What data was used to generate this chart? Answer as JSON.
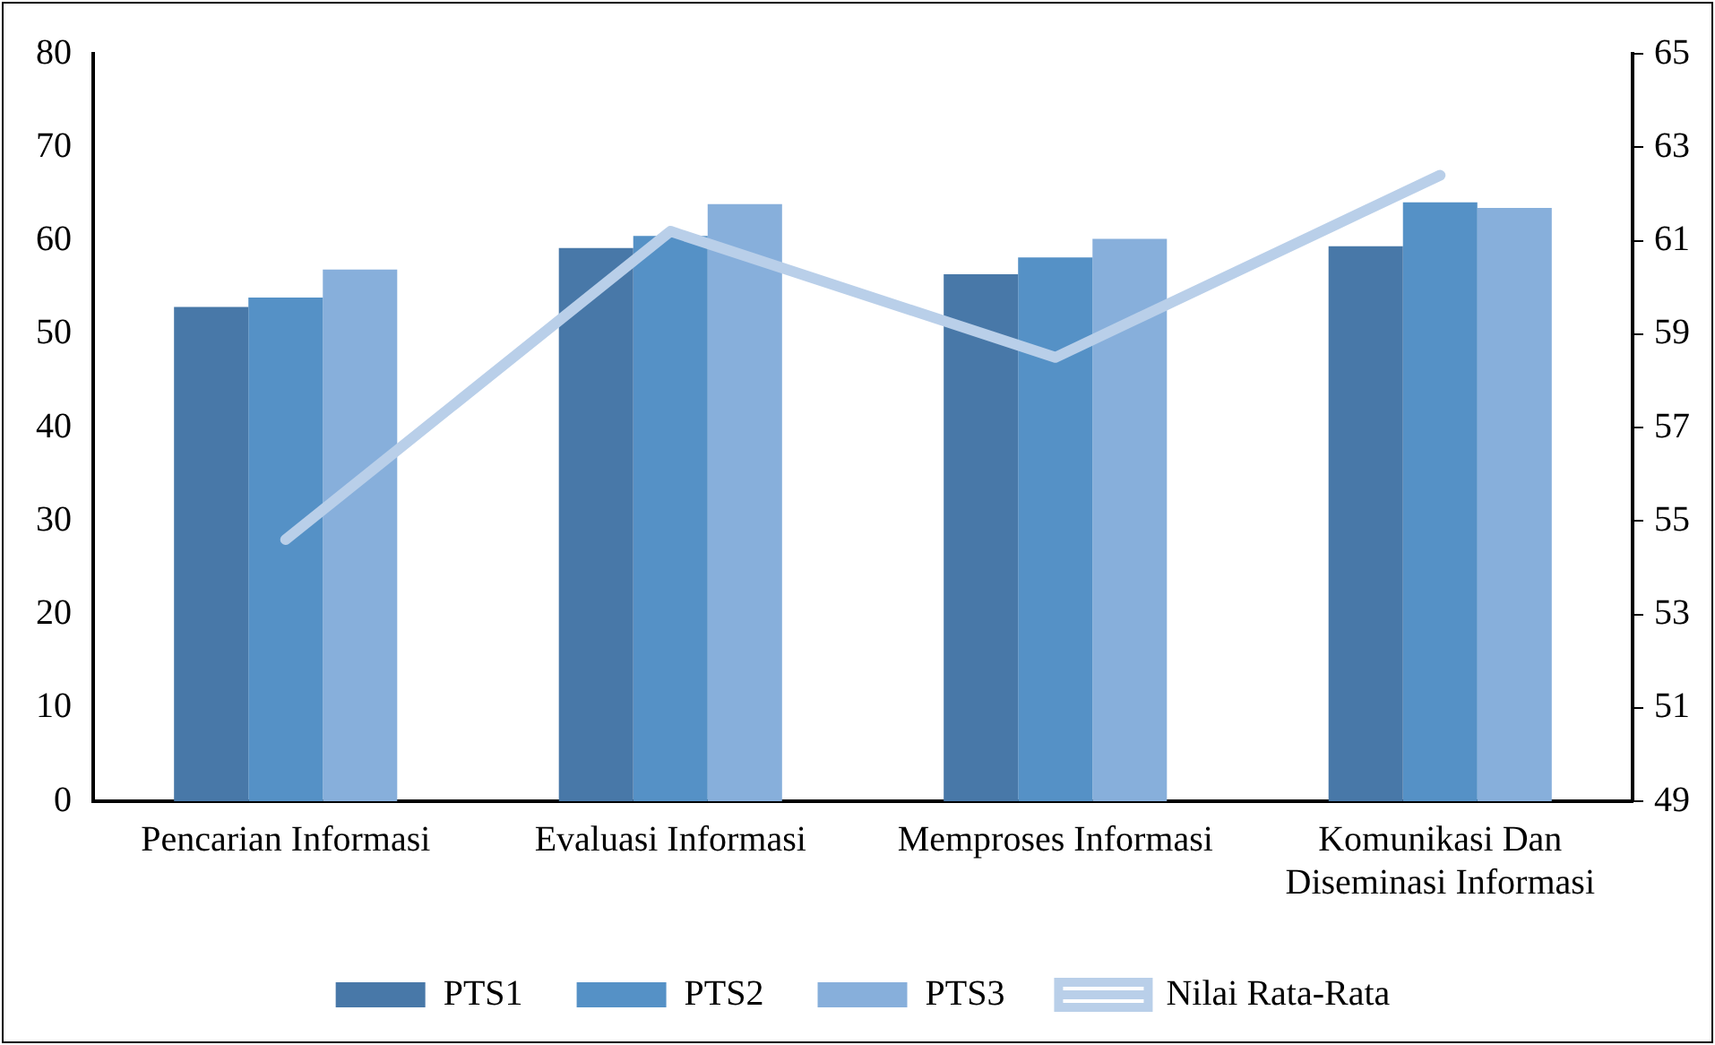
{
  "chart_data": {
    "type": "bar",
    "categories": [
      "Pencarian Informasi",
      "Evaluasi Informasi",
      "Memproses Informasi",
      "Komunikasi Dan Diseminasi Informasi"
    ],
    "series": [
      {
        "name": "PTS1",
        "color": "#4878a8",
        "values": [
          52.9,
          59.2,
          56.4,
          59.4
        ]
      },
      {
        "name": "PTS2",
        "color": "#5591c6",
        "values": [
          53.9,
          60.5,
          58.2,
          64.1
        ]
      },
      {
        "name": "PTS3",
        "color": "#87afdb",
        "values": [
          56.9,
          63.9,
          60.2,
          63.5
        ]
      },
      {
        "name": "Nilai Rata-Rata",
        "type": "line",
        "axis": "y2",
        "color": "#b9cfe9",
        "values": [
          54.6,
          61.2,
          58.5,
          62.4
        ]
      }
    ],
    "ylim": [
      0,
      80
    ],
    "yticks": [
      0,
      10,
      20,
      30,
      40,
      50,
      60,
      70,
      80
    ],
    "y2lim": [
      49,
      65
    ],
    "y2ticks": [
      49,
      51,
      53,
      55,
      57,
      59,
      61,
      63,
      65
    ],
    "grid": false,
    "legend": "bottom",
    "marker": "none"
  }
}
